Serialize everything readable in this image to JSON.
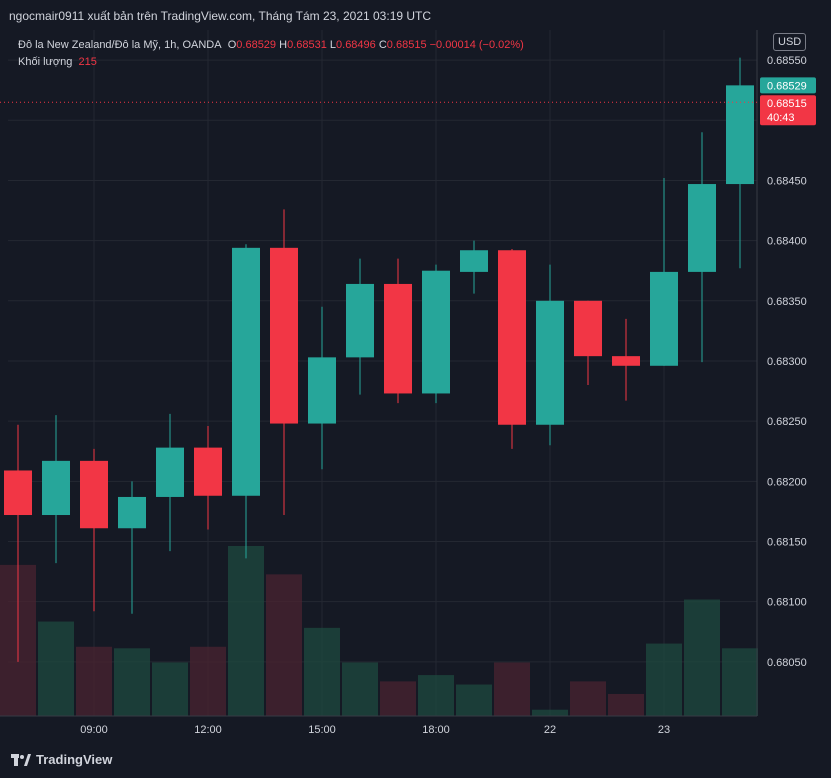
{
  "header": {
    "title": "ngocmair0911 xuất bản trên TradingView.com, Tháng Tám 23, 2021 03:19 UTC"
  },
  "legend": {
    "symbol": "Đô la New Zealand/Đô la Mỹ, 1h, OANDA",
    "o_label": "O",
    "o_value": "0.68529",
    "h_label": "H",
    "h_value": "0.68531",
    "l_label": "L",
    "l_value": "0.68496",
    "c_label": "C",
    "c_value": "0.68515",
    "change": "−0.00014 (−0.02%)",
    "volume_label": "Khối lượng",
    "volume_value": "215"
  },
  "currency_button": "USD",
  "footer": {
    "brand": "TradingView"
  },
  "colors": {
    "up": "#26a69a",
    "down": "#f23645",
    "background": "#151924",
    "grid": "#242832"
  },
  "chart_data": {
    "type": "candlestick",
    "y_ticks": [
      "0.68550",
      "0.68500",
      "0.68450",
      "0.68400",
      "0.68350",
      "0.68300",
      "0.68250",
      "0.68200",
      "0.68150",
      "0.68100",
      "0.68050"
    ],
    "x_ticks": [
      {
        "label": "09:00",
        "index": 2
      },
      {
        "label": "12:00",
        "index": 5
      },
      {
        "label": "15:00",
        "index": 8
      },
      {
        "label": "18:00",
        "index": 11
      },
      {
        "label": "22",
        "index": 14
      },
      {
        "label": "23",
        "index": 17
      }
    ],
    "ylim": [
      0.68005,
      0.68575
    ],
    "price_labels": {
      "bid": "0.68529",
      "last": "0.68515",
      "countdown": "40:43",
      "last_value": 0.68515
    },
    "candles": [
      {
        "o": 0.68209,
        "h": 0.68247,
        "l": 0.6805,
        "c": 0.68172,
        "v": 480
      },
      {
        "o": 0.68172,
        "h": 0.68255,
        "l": 0.68132,
        "c": 0.68217,
        "v": 300
      },
      {
        "o": 0.68217,
        "h": 0.68227,
        "l": 0.68092,
        "c": 0.68161,
        "v": 220
      },
      {
        "o": 0.68161,
        "h": 0.682,
        "l": 0.6809,
        "c": 0.68187,
        "v": 215
      },
      {
        "o": 0.68187,
        "h": 0.68256,
        "l": 0.68142,
        "c": 0.68228,
        "v": 170
      },
      {
        "o": 0.68228,
        "h": 0.68246,
        "l": 0.6816,
        "c": 0.68188,
        "v": 220
      },
      {
        "o": 0.68188,
        "h": 0.68397,
        "l": 0.68136,
        "c": 0.68394,
        "v": 540
      },
      {
        "o": 0.68394,
        "h": 0.68426,
        "l": 0.68172,
        "c": 0.68248,
        "v": 450
      },
      {
        "o": 0.68248,
        "h": 0.68345,
        "l": 0.6821,
        "c": 0.68303,
        "v": 280
      },
      {
        "o": 0.68303,
        "h": 0.68385,
        "l": 0.68272,
        "c": 0.68364,
        "v": 170
      },
      {
        "o": 0.68364,
        "h": 0.68385,
        "l": 0.68265,
        "c": 0.68273,
        "v": 110
      },
      {
        "o": 0.68273,
        "h": 0.6838,
        "l": 0.68265,
        "c": 0.68375,
        "v": 130
      },
      {
        "o": 0.68374,
        "h": 0.684,
        "l": 0.68356,
        "c": 0.68392,
        "v": 100
      },
      {
        "o": 0.68392,
        "h": 0.68393,
        "l": 0.68227,
        "c": 0.68247,
        "v": 170
      },
      {
        "o": 0.68247,
        "h": 0.6838,
        "l": 0.6823,
        "c": 0.6835,
        "v": 20
      },
      {
        "o": 0.6835,
        "h": 0.6835,
        "l": 0.6828,
        "c": 0.68304,
        "v": 110
      },
      {
        "o": 0.68304,
        "h": 0.68335,
        "l": 0.68267,
        "c": 0.68296,
        "v": 70
      },
      {
        "o": 0.68296,
        "h": 0.68452,
        "l": 0.68296,
        "c": 0.68374,
        "v": 230
      },
      {
        "o": 0.68374,
        "h": 0.6849,
        "l": 0.68299,
        "c": 0.68447,
        "v": 370
      },
      {
        "o": 0.68447,
        "h": 0.68552,
        "l": 0.68377,
        "c": 0.68529,
        "v": 215
      }
    ]
  }
}
